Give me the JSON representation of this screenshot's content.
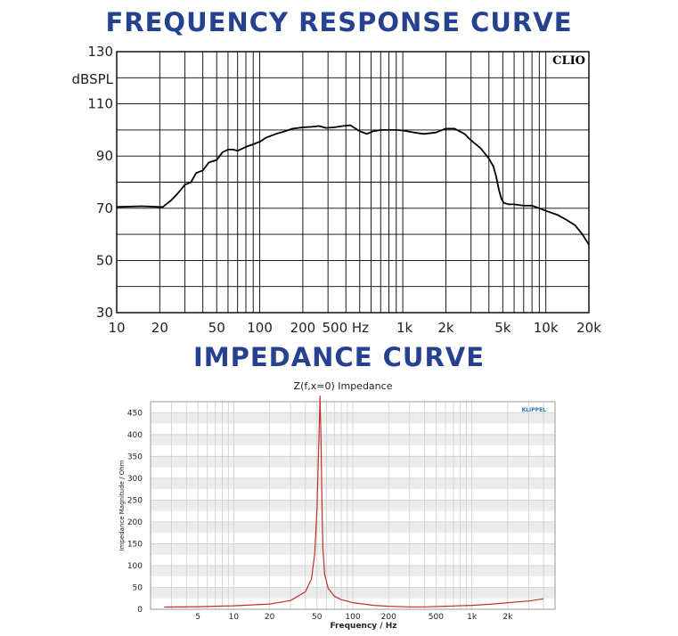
{
  "chart_data": [
    {
      "type": "line",
      "title": "FREQUENCY RESPONSE CURVE",
      "xlabel": "",
      "ylabel": "dBSPL",
      "badge": "CLIO",
      "xscale": "log",
      "xlim": [
        10,
        20000
      ],
      "ylim": [
        30,
        130
      ],
      "x_ticks": [
        {
          "value": 10,
          "label": "10"
        },
        {
          "value": 20,
          "label": "20"
        },
        {
          "value": 50,
          "label": "50"
        },
        {
          "value": 100,
          "label": "100"
        },
        {
          "value": 200,
          "label": "200"
        },
        {
          "value": 500,
          "label": "500 Hz"
        },
        {
          "value": 1000,
          "label": "1k"
        },
        {
          "value": 2000,
          "label": "2k"
        },
        {
          "value": 5000,
          "label": "5k"
        },
        {
          "value": 10000,
          "label": "10k"
        },
        {
          "value": 20000,
          "label": "20k"
        }
      ],
      "y_ticks": [
        30,
        50,
        70,
        90,
        110,
        130
      ],
      "grid": true,
      "colors": {
        "line": "#000000",
        "grid": "#000000",
        "title": "#26418f"
      },
      "series": [
        {
          "x": [
            10,
            15,
            20,
            21,
            24,
            27,
            30,
            33,
            36,
            40,
            44,
            50,
            55,
            60,
            65,
            70,
            80,
            90,
            100,
            110,
            130,
            150,
            170,
            200,
            230,
            260,
            290,
            330,
            380,
            430,
            500,
            560,
            620,
            700,
            800,
            900,
            1000,
            1200,
            1400,
            1700,
            2000,
            2300,
            2700,
            3000,
            3500,
            4000,
            4300,
            4500,
            4700,
            4900,
            5100,
            5500,
            6000,
            7000,
            8000,
            9000,
            10000,
            12000,
            14000,
            16000,
            18000,
            20000
          ],
          "y": [
            70.5,
            70.8,
            70.5,
            70.5,
            73,
            76,
            79,
            80,
            83.5,
            84.5,
            87.5,
            88.5,
            91.5,
            92.5,
            92.5,
            92,
            93.5,
            94.5,
            95.5,
            97,
            98.5,
            99.5,
            100.5,
            101,
            101.2,
            101.5,
            100.8,
            101,
            101.5,
            101.8,
            99.5,
            98.5,
            99.5,
            100,
            100,
            100,
            99.8,
            99,
            98.5,
            99,
            100.5,
            100.5,
            98.5,
            96,
            93,
            89,
            86,
            82,
            77,
            73.5,
            72,
            71.5,
            71.5,
            71,
            71,
            70,
            69,
            67.5,
            65.5,
            63.5,
            60,
            56
          ]
        }
      ]
    },
    {
      "type": "line",
      "title": "IMPEDANCE CURVE",
      "subtitle": "Z(f,x=0) Impedance",
      "xlabel": "Frequency / Hz",
      "ylabel": "Impedance Magnitude / Ohm",
      "badge": "KLIPPEL",
      "xscale": "log",
      "xlim": [
        2,
        5000
      ],
      "ylim": [
        0,
        475
      ],
      "x_ticks": [
        5,
        10,
        20,
        50,
        100,
        200,
        500,
        "1k",
        "2k"
      ],
      "y_ticks": [
        0,
        50,
        100,
        150,
        200,
        250,
        300,
        350,
        400,
        450
      ],
      "grid": true,
      "colors": {
        "line": "#c0312b",
        "grid": "#cfcfcf",
        "band": "#ececec",
        "title": "#26418f",
        "badge": "#2e6fb4"
      },
      "series": [
        {
          "x": [
            2.6,
            5,
            10,
            20,
            30,
            40,
            45,
            48,
            50,
            52,
            53,
            54,
            55,
            56,
            58,
            62,
            70,
            80,
            100,
            150,
            200,
            300,
            400,
            600,
            1000,
            1500,
            2000,
            3000,
            4000
          ],
          "y": [
            5,
            6,
            8,
            12,
            20,
            40,
            70,
            130,
            230,
            400,
            488,
            400,
            250,
            140,
            80,
            48,
            30,
            22,
            15,
            9,
            7,
            5.5,
            5.5,
            7,
            9,
            12,
            15,
            19,
            24
          ]
        }
      ]
    }
  ]
}
